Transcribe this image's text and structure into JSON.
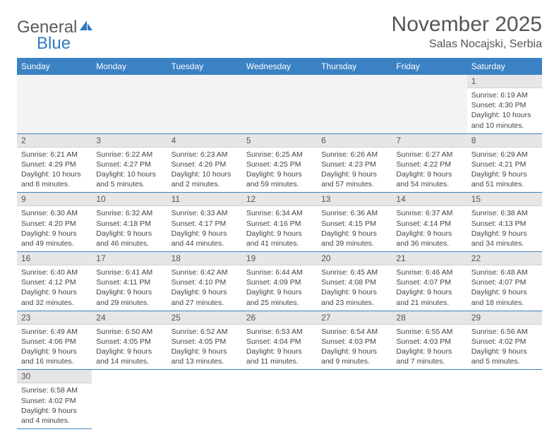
{
  "brand": {
    "part1": "General",
    "part2": "Blue"
  },
  "title": "November 2025",
  "location": "Salas Nocajski, Serbia",
  "colors": {
    "header_bg": "#3b82c4",
    "header_text": "#ffffff",
    "daynum_bg": "#e6e6e6",
    "row_divider": "#3b82c4",
    "brand_gray": "#5a5a5a",
    "brand_blue": "#2f7bbf"
  },
  "weekdays": [
    "Sunday",
    "Monday",
    "Tuesday",
    "Wednesday",
    "Thursday",
    "Friday",
    "Saturday"
  ],
  "weeks": [
    [
      null,
      null,
      null,
      null,
      null,
      null,
      {
        "n": "1",
        "sr": "Sunrise: 6:19 AM",
        "ss": "Sunset: 4:30 PM",
        "dl1": "Daylight: 10 hours",
        "dl2": "and 10 minutes."
      }
    ],
    [
      {
        "n": "2",
        "sr": "Sunrise: 6:21 AM",
        "ss": "Sunset: 4:29 PM",
        "dl1": "Daylight: 10 hours",
        "dl2": "and 8 minutes."
      },
      {
        "n": "3",
        "sr": "Sunrise: 6:22 AM",
        "ss": "Sunset: 4:27 PM",
        "dl1": "Daylight: 10 hours",
        "dl2": "and 5 minutes."
      },
      {
        "n": "4",
        "sr": "Sunrise: 6:23 AM",
        "ss": "Sunset: 4:26 PM",
        "dl1": "Daylight: 10 hours",
        "dl2": "and 2 minutes."
      },
      {
        "n": "5",
        "sr": "Sunrise: 6:25 AM",
        "ss": "Sunset: 4:25 PM",
        "dl1": "Daylight: 9 hours",
        "dl2": "and 59 minutes."
      },
      {
        "n": "6",
        "sr": "Sunrise: 6:26 AM",
        "ss": "Sunset: 4:23 PM",
        "dl1": "Daylight: 9 hours",
        "dl2": "and 57 minutes."
      },
      {
        "n": "7",
        "sr": "Sunrise: 6:27 AM",
        "ss": "Sunset: 4:22 PM",
        "dl1": "Daylight: 9 hours",
        "dl2": "and 54 minutes."
      },
      {
        "n": "8",
        "sr": "Sunrise: 6:29 AM",
        "ss": "Sunset: 4:21 PM",
        "dl1": "Daylight: 9 hours",
        "dl2": "and 51 minutes."
      }
    ],
    [
      {
        "n": "9",
        "sr": "Sunrise: 6:30 AM",
        "ss": "Sunset: 4:20 PM",
        "dl1": "Daylight: 9 hours",
        "dl2": "and 49 minutes."
      },
      {
        "n": "10",
        "sr": "Sunrise: 6:32 AM",
        "ss": "Sunset: 4:18 PM",
        "dl1": "Daylight: 9 hours",
        "dl2": "and 46 minutes."
      },
      {
        "n": "11",
        "sr": "Sunrise: 6:33 AM",
        "ss": "Sunset: 4:17 PM",
        "dl1": "Daylight: 9 hours",
        "dl2": "and 44 minutes."
      },
      {
        "n": "12",
        "sr": "Sunrise: 6:34 AM",
        "ss": "Sunset: 4:16 PM",
        "dl1": "Daylight: 9 hours",
        "dl2": "and 41 minutes."
      },
      {
        "n": "13",
        "sr": "Sunrise: 6:36 AM",
        "ss": "Sunset: 4:15 PM",
        "dl1": "Daylight: 9 hours",
        "dl2": "and 39 minutes."
      },
      {
        "n": "14",
        "sr": "Sunrise: 6:37 AM",
        "ss": "Sunset: 4:14 PM",
        "dl1": "Daylight: 9 hours",
        "dl2": "and 36 minutes."
      },
      {
        "n": "15",
        "sr": "Sunrise: 6:38 AM",
        "ss": "Sunset: 4:13 PM",
        "dl1": "Daylight: 9 hours",
        "dl2": "and 34 minutes."
      }
    ],
    [
      {
        "n": "16",
        "sr": "Sunrise: 6:40 AM",
        "ss": "Sunset: 4:12 PM",
        "dl1": "Daylight: 9 hours",
        "dl2": "and 32 minutes."
      },
      {
        "n": "17",
        "sr": "Sunrise: 6:41 AM",
        "ss": "Sunset: 4:11 PM",
        "dl1": "Daylight: 9 hours",
        "dl2": "and 29 minutes."
      },
      {
        "n": "18",
        "sr": "Sunrise: 6:42 AM",
        "ss": "Sunset: 4:10 PM",
        "dl1": "Daylight: 9 hours",
        "dl2": "and 27 minutes."
      },
      {
        "n": "19",
        "sr": "Sunrise: 6:44 AM",
        "ss": "Sunset: 4:09 PM",
        "dl1": "Daylight: 9 hours",
        "dl2": "and 25 minutes."
      },
      {
        "n": "20",
        "sr": "Sunrise: 6:45 AM",
        "ss": "Sunset: 4:08 PM",
        "dl1": "Daylight: 9 hours",
        "dl2": "and 23 minutes."
      },
      {
        "n": "21",
        "sr": "Sunrise: 6:46 AM",
        "ss": "Sunset: 4:07 PM",
        "dl1": "Daylight: 9 hours",
        "dl2": "and 21 minutes."
      },
      {
        "n": "22",
        "sr": "Sunrise: 6:48 AM",
        "ss": "Sunset: 4:07 PM",
        "dl1": "Daylight: 9 hours",
        "dl2": "and 18 minutes."
      }
    ],
    [
      {
        "n": "23",
        "sr": "Sunrise: 6:49 AM",
        "ss": "Sunset: 4:06 PM",
        "dl1": "Daylight: 9 hours",
        "dl2": "and 16 minutes."
      },
      {
        "n": "24",
        "sr": "Sunrise: 6:50 AM",
        "ss": "Sunset: 4:05 PM",
        "dl1": "Daylight: 9 hours",
        "dl2": "and 14 minutes."
      },
      {
        "n": "25",
        "sr": "Sunrise: 6:52 AM",
        "ss": "Sunset: 4:05 PM",
        "dl1": "Daylight: 9 hours",
        "dl2": "and 13 minutes."
      },
      {
        "n": "26",
        "sr": "Sunrise: 6:53 AM",
        "ss": "Sunset: 4:04 PM",
        "dl1": "Daylight: 9 hours",
        "dl2": "and 11 minutes."
      },
      {
        "n": "27",
        "sr": "Sunrise: 6:54 AM",
        "ss": "Sunset: 4:03 PM",
        "dl1": "Daylight: 9 hours",
        "dl2": "and 9 minutes."
      },
      {
        "n": "28",
        "sr": "Sunrise: 6:55 AM",
        "ss": "Sunset: 4:03 PM",
        "dl1": "Daylight: 9 hours",
        "dl2": "and 7 minutes."
      },
      {
        "n": "29",
        "sr": "Sunrise: 6:56 AM",
        "ss": "Sunset: 4:02 PM",
        "dl1": "Daylight: 9 hours",
        "dl2": "and 5 minutes."
      }
    ],
    [
      {
        "n": "30",
        "sr": "Sunrise: 6:58 AM",
        "ss": "Sunset: 4:02 PM",
        "dl1": "Daylight: 9 hours",
        "dl2": "and 4 minutes."
      },
      null,
      null,
      null,
      null,
      null,
      null
    ]
  ]
}
